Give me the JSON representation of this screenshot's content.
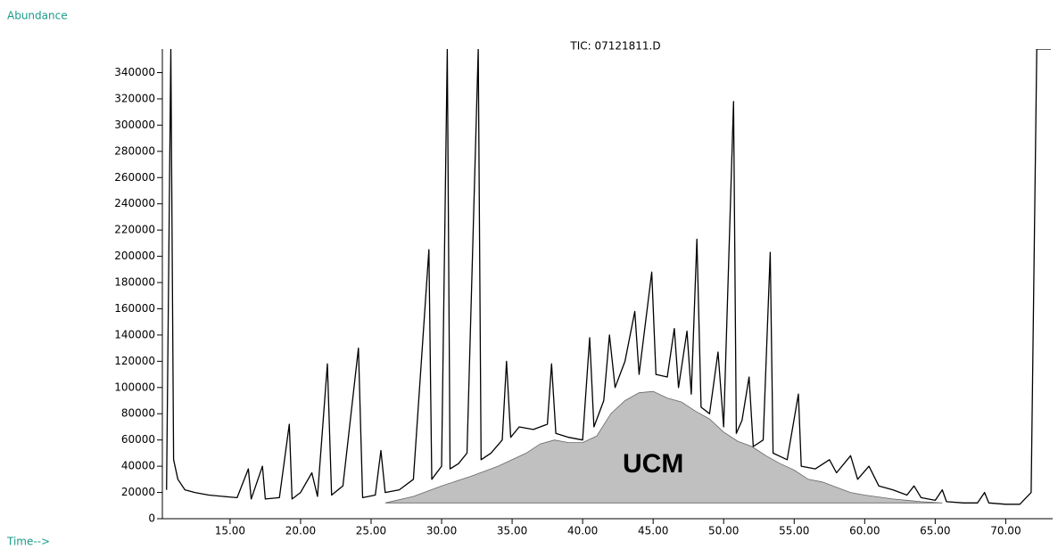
{
  "chart_data": {
    "type": "line",
    "title": "TIC: 07121811.D",
    "y_label": "Abundance",
    "x_label": "Time-->",
    "color": "#000000",
    "xlim": [
      10.2,
      73.2
    ],
    "ylim": [
      0,
      358000
    ],
    "xticks": [
      {
        "value": 15,
        "label": "15.00"
      },
      {
        "value": 20,
        "label": "20.00"
      },
      {
        "value": 25,
        "label": "25.00"
      },
      {
        "value": 30,
        "label": "30.00"
      },
      {
        "value": 35,
        "label": "35.00"
      },
      {
        "value": 40,
        "label": "40.00"
      },
      {
        "value": 45,
        "label": "45.00"
      },
      {
        "value": 50,
        "label": "50.00"
      },
      {
        "value": 55,
        "label": "55.00"
      },
      {
        "value": 60,
        "label": "60.00"
      },
      {
        "value": 65,
        "label": "65.00"
      },
      {
        "value": 70,
        "label": "70.00"
      }
    ],
    "yticks": [
      0,
      20000,
      40000,
      60000,
      80000,
      100000,
      120000,
      140000,
      160000,
      180000,
      200000,
      220000,
      240000,
      260000,
      280000,
      300000,
      320000,
      340000
    ],
    "x": [
      10.5,
      10.8,
      11.0,
      11.3,
      11.8,
      12.5,
      13.5,
      14.5,
      15.5,
      16.3,
      16.5,
      17.3,
      17.5,
      18.5,
      19.2,
      19.4,
      20.0,
      20.8,
      21.2,
      21.9,
      22.2,
      23.0,
      24.1,
      24.4,
      25.3,
      25.7,
      26.0,
      27.0,
      28.0,
      29.1,
      29.3,
      30.0,
      30.4,
      30.6,
      31.2,
      31.8,
      32.6,
      32.8,
      33.5,
      34.3,
      34.6,
      34.9,
      35.5,
      36.5,
      37.5,
      37.8,
      38.1,
      39.0,
      40.0,
      40.5,
      40.8,
      41.5,
      41.9,
      42.3,
      43.0,
      43.7,
      44.0,
      44.9,
      45.2,
      46.0,
      46.5,
      46.8,
      47.4,
      47.7,
      48.1,
      48.4,
      49.0,
      49.6,
      50.0,
      50.7,
      50.9,
      51.3,
      51.8,
      52.1,
      52.8,
      53.3,
      53.5,
      54.5,
      55.3,
      55.5,
      56.5,
      57.5,
      58.0,
      59.0,
      59.5,
      60.3,
      61.0,
      62.0,
      63.0,
      63.5,
      64.0,
      65.0,
      65.5,
      65.8,
      67.0,
      68.0,
      68.5,
      68.8,
      70.0,
      71.0,
      71.8,
      72.2,
      73.2
    ],
    "values": [
      22000,
      358000,
      45000,
      30000,
      22000,
      20000,
      18000,
      17000,
      16000,
      38000,
      15000,
      40000,
      15000,
      16000,
      72000,
      15000,
      20000,
      35000,
      17000,
      118000,
      18000,
      25000,
      130000,
      16000,
      18000,
      52000,
      20000,
      22000,
      30000,
      205000,
      30000,
      40000,
      358000,
      38000,
      42000,
      50000,
      358000,
      45000,
      50000,
      60000,
      120000,
      62000,
      70000,
      68000,
      72000,
      118000,
      65000,
      62000,
      60000,
      138000,
      70000,
      90000,
      140000,
      100000,
      120000,
      158000,
      110000,
      188000,
      110000,
      108000,
      145000,
      100000,
      143000,
      95000,
      213000,
      85000,
      80000,
      127000,
      70000,
      318000,
      65000,
      75000,
      108000,
      55000,
      60000,
      203000,
      50000,
      45000,
      95000,
      40000,
      38000,
      45000,
      35000,
      48000,
      30000,
      40000,
      25000,
      22000,
      18000,
      25000,
      16000,
      14000,
      22000,
      13000,
      12000,
      12000,
      20000,
      12000,
      11000,
      11000,
      20000,
      358000,
      358000
    ],
    "areas": [
      {
        "label": "UCM",
        "color": "#c0c0c0",
        "x": [
          26,
          28,
          30,
          32,
          34,
          36,
          37,
          38,
          39,
          40,
          41,
          42,
          43,
          44,
          45,
          46,
          47,
          48,
          49,
          50,
          51,
          52,
          53,
          54,
          55,
          56,
          57,
          58,
          59,
          60,
          62,
          64,
          65.5
        ],
        "values": [
          12000,
          17000,
          25000,
          32000,
          40000,
          50000,
          57000,
          60000,
          58000,
          58000,
          63000,
          80000,
          90000,
          96000,
          97000,
          92000,
          89000,
          82000,
          76000,
          66000,
          59000,
          55000,
          48000,
          42000,
          37000,
          30000,
          28000,
          24000,
          20000,
          18000,
          15000,
          13000,
          12000
        ]
      }
    ]
  }
}
